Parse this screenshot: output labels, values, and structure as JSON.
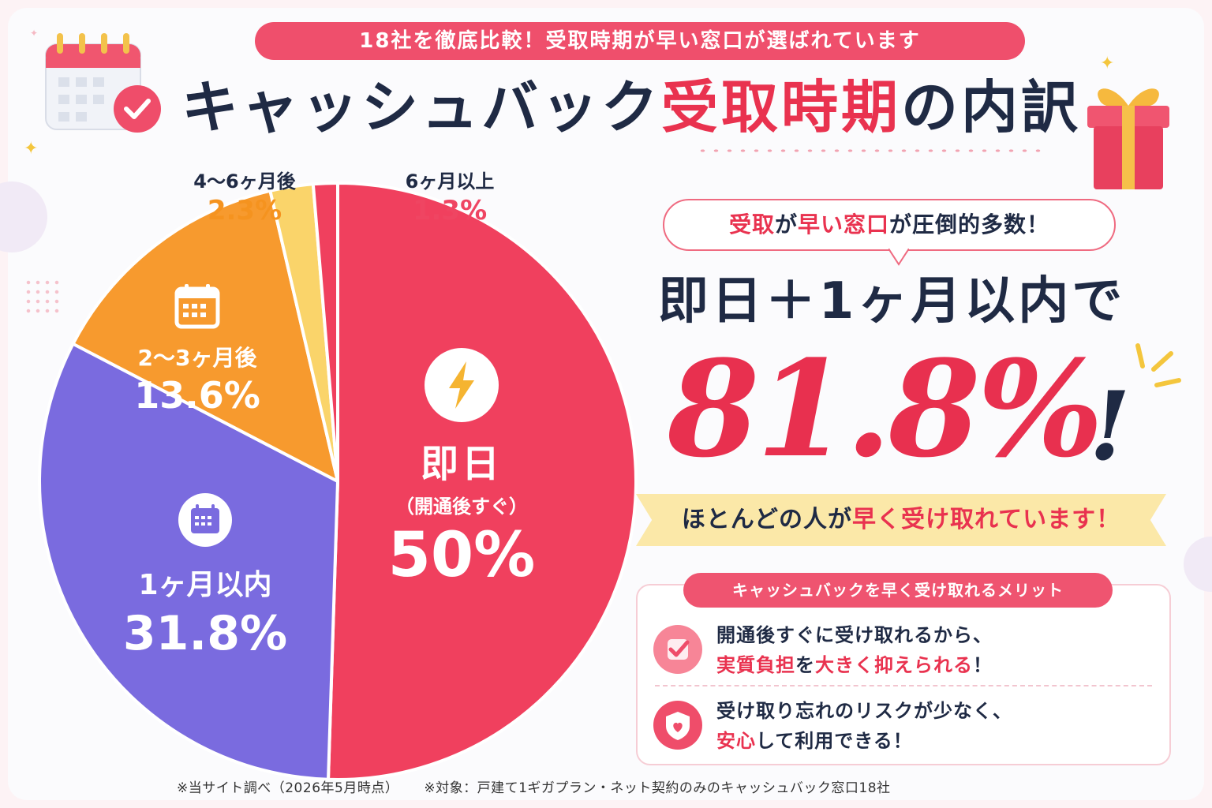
{
  "header": {
    "banner": "18社を徹底比較！受取時期が早い窓口が選ばれています",
    "title_plain": "キャッシュバック",
    "title_accent": "受取時期",
    "title_tail": "の内訳"
  },
  "chart_data": {
    "type": "pie",
    "slices": [
      {
        "label": "即日",
        "sublabel": "（開通後すぐ）",
        "value": 50,
        "display": "50%",
        "color": "#f0405e"
      },
      {
        "label": "1ヶ月以内",
        "value": 31.8,
        "display": "31.8%",
        "color": "#7a6bdf"
      },
      {
        "label": "2〜3ヶ月後",
        "value": 13.6,
        "display": "13.6%",
        "color": "#f79a2e"
      },
      {
        "label": "4〜6ヶ月後",
        "value": 2.3,
        "display": "2.3%",
        "color": "#fad46a"
      },
      {
        "label": "6ヶ月以上",
        "value": 1.3,
        "display": "1.3%",
        "color": "#f0405e"
      }
    ],
    "outer_label_colors": {
      "4〜6ヶ月後": "#f5931f",
      "6ヶ月以上": "#ef4562"
    }
  },
  "highlight": {
    "bubble_part1": "受取",
    "bubble_part2": "が",
    "bubble_part3": "早い窓口",
    "bubble_part4": "が圧倒的多数！",
    "sub": "即日＋1ヶ月以内で",
    "number": "81.8%",
    "exclaim": "!",
    "ribbon_plain": "ほとんどの人が",
    "ribbon_accent": "早く受け取れています！"
  },
  "merits": {
    "header": "キャッシュバックを早く受け取れるメリット",
    "items": [
      {
        "line1": "開通後すぐに受け取れるから、",
        "line2_a": "実質負担",
        "line2_b": "を",
        "line2_c": "大きく抑えられる",
        "line2_d": "！",
        "icon": "check-icon"
      },
      {
        "line1": "受け取り忘れのリスクが少なく、",
        "line2_a": "安心",
        "line2_b": "して利用できる！",
        "line2_c": "",
        "line2_d": "",
        "icon": "shield-heart-icon"
      }
    ]
  },
  "footer": {
    "note1": "※当サイト調べ（2026年5月時点）",
    "note2": "※対象：戸建て1ギガプラン・ネット契約のみのキャッシュバック窓口18社"
  },
  "colors": {
    "accent": "#e9324f",
    "navy": "#1f2a44",
    "ribbon": "#fbe8a8"
  }
}
